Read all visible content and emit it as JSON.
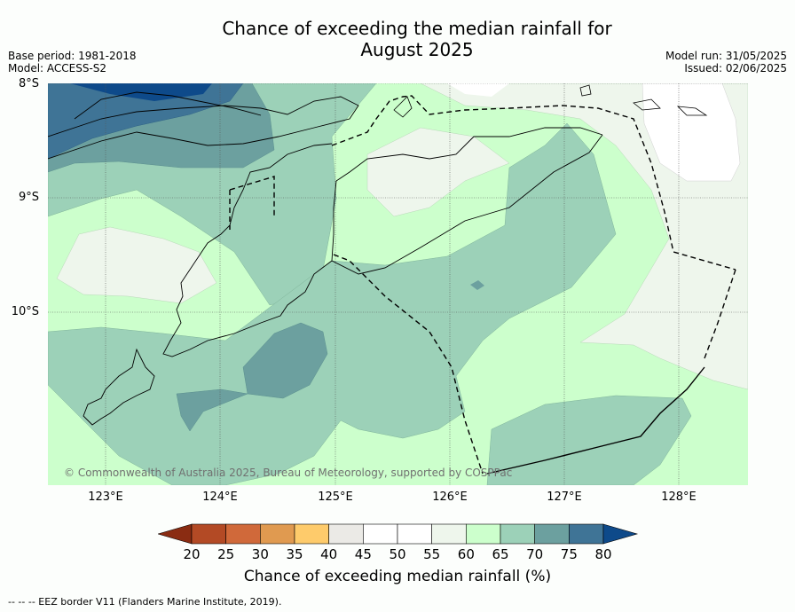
{
  "title_line1": "Chance of exceeding the median rainfall for",
  "title_line2": "August 2025",
  "meta_left": {
    "base_period": "Base period: 1981-2018",
    "model": "Model: ACCESS-S2"
  },
  "meta_right": {
    "model_run": "Model run: 31/05/2025",
    "issued": "Issued: 02/06/2025"
  },
  "latitude_labels": [
    "8°S",
    "9°S",
    "10°S"
  ],
  "longitude_labels": [
    "123°E",
    "124°E",
    "125°E",
    "126°E",
    "127°E",
    "128°E"
  ],
  "copyright": "© Commonwealth of Australia 2025, Bureau of Meteorology, supported by COSPPac",
  "colorbar": {
    "title": "Chance of exceeding median rainfall (%)",
    "tick_labels": [
      "20",
      "25",
      "30",
      "35",
      "40",
      "45",
      "50",
      "55",
      "60",
      "65",
      "70",
      "75",
      "80"
    ],
    "colors": [
      "#8a2c12",
      "#b34a25",
      "#d0693a",
      "#e09a50",
      "#fecb6b",
      "#ebeae6",
      "#ffffff",
      "#ffffff",
      "#eef6ec",
      "#ccffcc",
      "#9cd1b8",
      "#6ca09f",
      "#3f7496",
      "#0e4a8a"
    ]
  },
  "footnote": "--  --  -- EEZ border V11 (Flanders Marine Institute, 2019).",
  "map_data": {
    "lon_range": [
      122.5,
      128.6
    ],
    "lat_range": [
      -11.5,
      -8.0
    ],
    "gridlines": true
  }
}
